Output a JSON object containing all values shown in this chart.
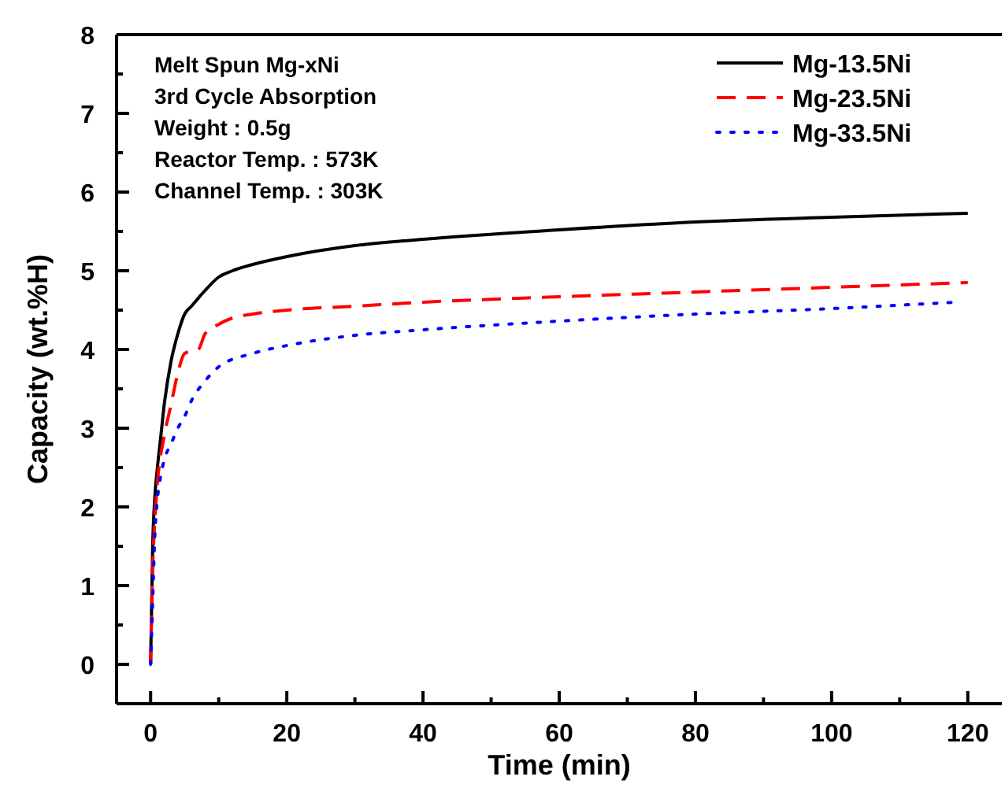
{
  "chart_data": {
    "type": "line",
    "xlabel": "Time (min)",
    "ylabel": "Capacity (wt.%H)",
    "annotations": [
      "Melt Spun Mg-xNi",
      "3rd Cycle Absorption",
      "Weight : 0.5g",
      "Reactor Temp. : 573K",
      "Channel Temp. : 303K"
    ],
    "xlim": [
      -5,
      125
    ],
    "xticks": [
      0,
      {
        "value": 10,
        "label": null
      },
      20,
      {
        "value": 30,
        "label": null
      },
      40,
      {
        "value": 50,
        "label": null
      },
      60,
      {
        "value": 70,
        "label": null
      },
      80,
      {
        "value": 90,
        "label": null
      },
      100,
      {
        "value": 110,
        "label": null
      },
      120
    ],
    "ylim": [
      -0.5,
      8
    ],
    "yticks": [
      0,
      {
        "value": 0.5,
        "label": null
      },
      1,
      {
        "value": 1.5,
        "label": null
      },
      2,
      {
        "value": 2.5,
        "label": null
      },
      3,
      {
        "value": 3.5,
        "label": null
      },
      4,
      {
        "value": 4.5,
        "label": null
      },
      5,
      {
        "value": 5.5,
        "label": null
      },
      6,
      {
        "value": 6.5,
        "label": null
      },
      7,
      {
        "value": 7.5,
        "label": null
      },
      8
    ],
    "legend": "top right",
    "grid": false,
    "series": [
      {
        "name": "Mg-13.5Ni",
        "color": "#000000",
        "line_style": "solid",
        "x": [
          0,
          0.3,
          0.6,
          1,
          1.5,
          2,
          3,
          4,
          5,
          6,
          8,
          10,
          12,
          15,
          20,
          30,
          40,
          60,
          80,
          100,
          120
        ],
        "values": [
          0,
          1.5,
          2.1,
          2.5,
          2.9,
          3.3,
          3.85,
          4.2,
          4.45,
          4.55,
          4.75,
          4.92,
          5.0,
          5.08,
          5.18,
          5.32,
          5.4,
          5.52,
          5.62,
          5.68,
          5.73
        ]
      },
      {
        "name": "Mg-23.5Ni",
        "color": "#ff0000",
        "line_style": "dashed",
        "x": [
          0,
          0.3,
          0.6,
          1,
          2,
          3,
          4,
          5,
          7,
          8,
          10,
          12,
          15,
          20,
          30,
          40,
          60,
          80,
          100,
          120
        ],
        "values": [
          0,
          1.2,
          1.8,
          2.3,
          2.9,
          3.3,
          3.7,
          3.95,
          4.0,
          4.2,
          4.32,
          4.4,
          4.45,
          4.5,
          4.55,
          4.6,
          4.67,
          4.73,
          4.79,
          4.85
        ]
      },
      {
        "name": "Mg-33.5Ni",
        "color": "#0000ff",
        "line_style": "dotted",
        "x": [
          0,
          0.3,
          0.6,
          1,
          1.5,
          2,
          3,
          4,
          5,
          6,
          8,
          10,
          15,
          20,
          30,
          40,
          60,
          80,
          100,
          118
        ],
        "values": [
          0,
          0.8,
          1.6,
          2.1,
          2.4,
          2.6,
          2.8,
          3.0,
          3.15,
          3.35,
          3.6,
          3.78,
          3.95,
          4.05,
          4.18,
          4.25,
          4.36,
          4.45,
          4.52,
          4.6
        ]
      }
    ]
  }
}
